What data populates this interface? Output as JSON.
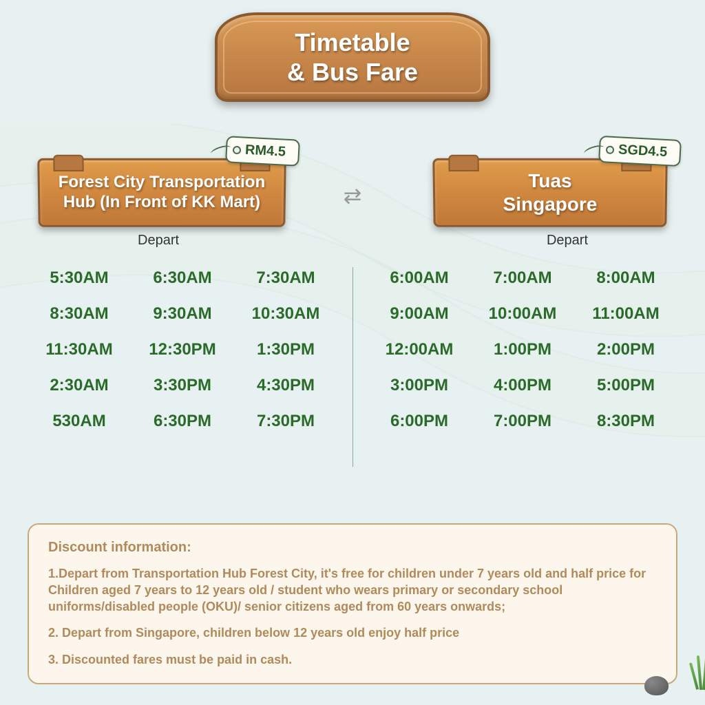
{
  "header": {
    "title_line1": "Timetable",
    "title_line2": "& Bus Fare"
  },
  "station_a": {
    "name": "Forest City Transportation Hub (In Front of KK Mart)",
    "price": "RM4.5",
    "depart_label": "Depart",
    "times": [
      "5:30AM",
      "6:30AM",
      "7:30AM",
      "8:30AM",
      "9:30AM",
      "10:30AM",
      "11:30AM",
      "12:30PM",
      "1:30PM",
      "2:30AM",
      "3:30PM",
      "4:30PM",
      "530AM",
      "6:30PM",
      "7:30PM"
    ]
  },
  "station_b": {
    "name_line1": "Tuas",
    "name_line2": "Singapore",
    "price": "SGD4.5",
    "depart_label": "Depart",
    "times": [
      "6:00AM",
      "7:00AM",
      "8:00AM",
      "9:00AM",
      "10:00AM",
      "11:00AM",
      "12:00AM",
      "1:00PM",
      "2:00PM",
      "3:00PM",
      "4:00PM",
      "5:00PM",
      "6:00PM",
      "7:00PM",
      "8:30PM"
    ]
  },
  "discount": {
    "title": "Discount information:",
    "items": [
      "1.Depart from Transportation Hub Forest City, it's free for children under 7 years old and half price for Children aged 7 years to 12 years old / student who wears primary or secondary school uniforms/disabled people (OKU)/ senior citizens aged from 60 years onwards;",
      "2. Depart from Singapore, children below 12 years old enjoy half price",
      "3. Discounted fares must be paid in cash."
    ]
  },
  "colors": {
    "background": "#e8f1f1",
    "wood_light": "#d89a56",
    "wood_dark": "#b67740",
    "wood_border": "#8a5a2e",
    "time_text": "#2a6b2a",
    "discount_bg": "#fdf6ed",
    "discount_border": "#c9a97a",
    "discount_text": "#b08a5a"
  }
}
